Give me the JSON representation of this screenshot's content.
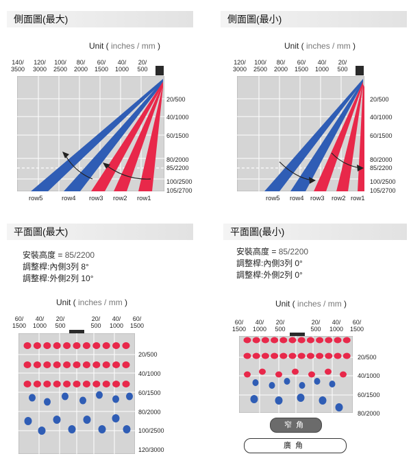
{
  "panels": {
    "side_max": {
      "title": "側面圖(最大)",
      "unit_label": "Unit",
      "unit_inner": "inches / mm",
      "top_ticks": [
        "140/\n3500",
        "120/\n3000",
        "100/\n2500",
        "80/\n2000",
        "60/\n1500",
        "40/\n1000",
        "20/\n500"
      ],
      "right_ticks": [
        "20/500",
        "40/1000",
        "60/1500",
        "80/2000",
        "85/2200",
        "100/2500",
        "105/2700"
      ],
      "rows": [
        "row5",
        "row4",
        "row3",
        "row2",
        "row1"
      ]
    },
    "side_min": {
      "title": "側面圖(最小)",
      "unit_label": "Unit",
      "unit_inner": "inches / mm",
      "top_ticks": [
        "120/\n3000",
        "100/\n2500",
        "80/\n2000",
        "60/\n1500",
        "40/\n1000",
        "20/\n500"
      ],
      "right_ticks": [
        "20/500",
        "40/1000",
        "60/1500",
        "80/2000",
        "85/2200",
        "100/2500",
        "105/2700"
      ],
      "rows": [
        "row5",
        "row4",
        "row3",
        "row2",
        "row1"
      ]
    },
    "plan_max": {
      "title": "平面圖(最大)",
      "spec": {
        "height_label": "安裝高度 = ",
        "height_value": "85/2200",
        "inner": "調整桿:內側3列 8°",
        "outer": "調整桿:外側2列 10°"
      },
      "unit_label": "Unit",
      "unit_inner": "inches / mm",
      "top_ticks": [
        "60/\n1500",
        "40/\n1000",
        "20/\n500",
        "20/\n500",
        "40/\n1000",
        "60/\n1500"
      ],
      "right_ticks": [
        "20/500",
        "40/1000",
        "60/1500",
        "80/2000",
        "100/2500",
        "120/3000"
      ]
    },
    "plan_min": {
      "title": "平面圖(最小)",
      "spec": {
        "height_label": "安裝高度 = ",
        "height_value": "85/2200",
        "inner": "調整桿:內側3列 0°",
        "outer": "調整桿:外側2列 0°"
      },
      "unit_label": "Unit",
      "unit_inner": "inches / mm",
      "top_ticks": [
        "60/\n1500",
        "40/\n1000",
        "20/\n500",
        "20/\n500",
        "40/\n1000",
        "60/\n1500"
      ],
      "right_ticks": [
        "20/500",
        "40/1000",
        "60/1500",
        "80/2000"
      ],
      "buttons": {
        "narrow": "窄角",
        "wide": "廣角"
      }
    }
  },
  "colors": {
    "red": "#e8284a",
    "blue": "#2f5db5",
    "grid_bg": "#d5d5d5",
    "grid_line": "#ffffff"
  }
}
